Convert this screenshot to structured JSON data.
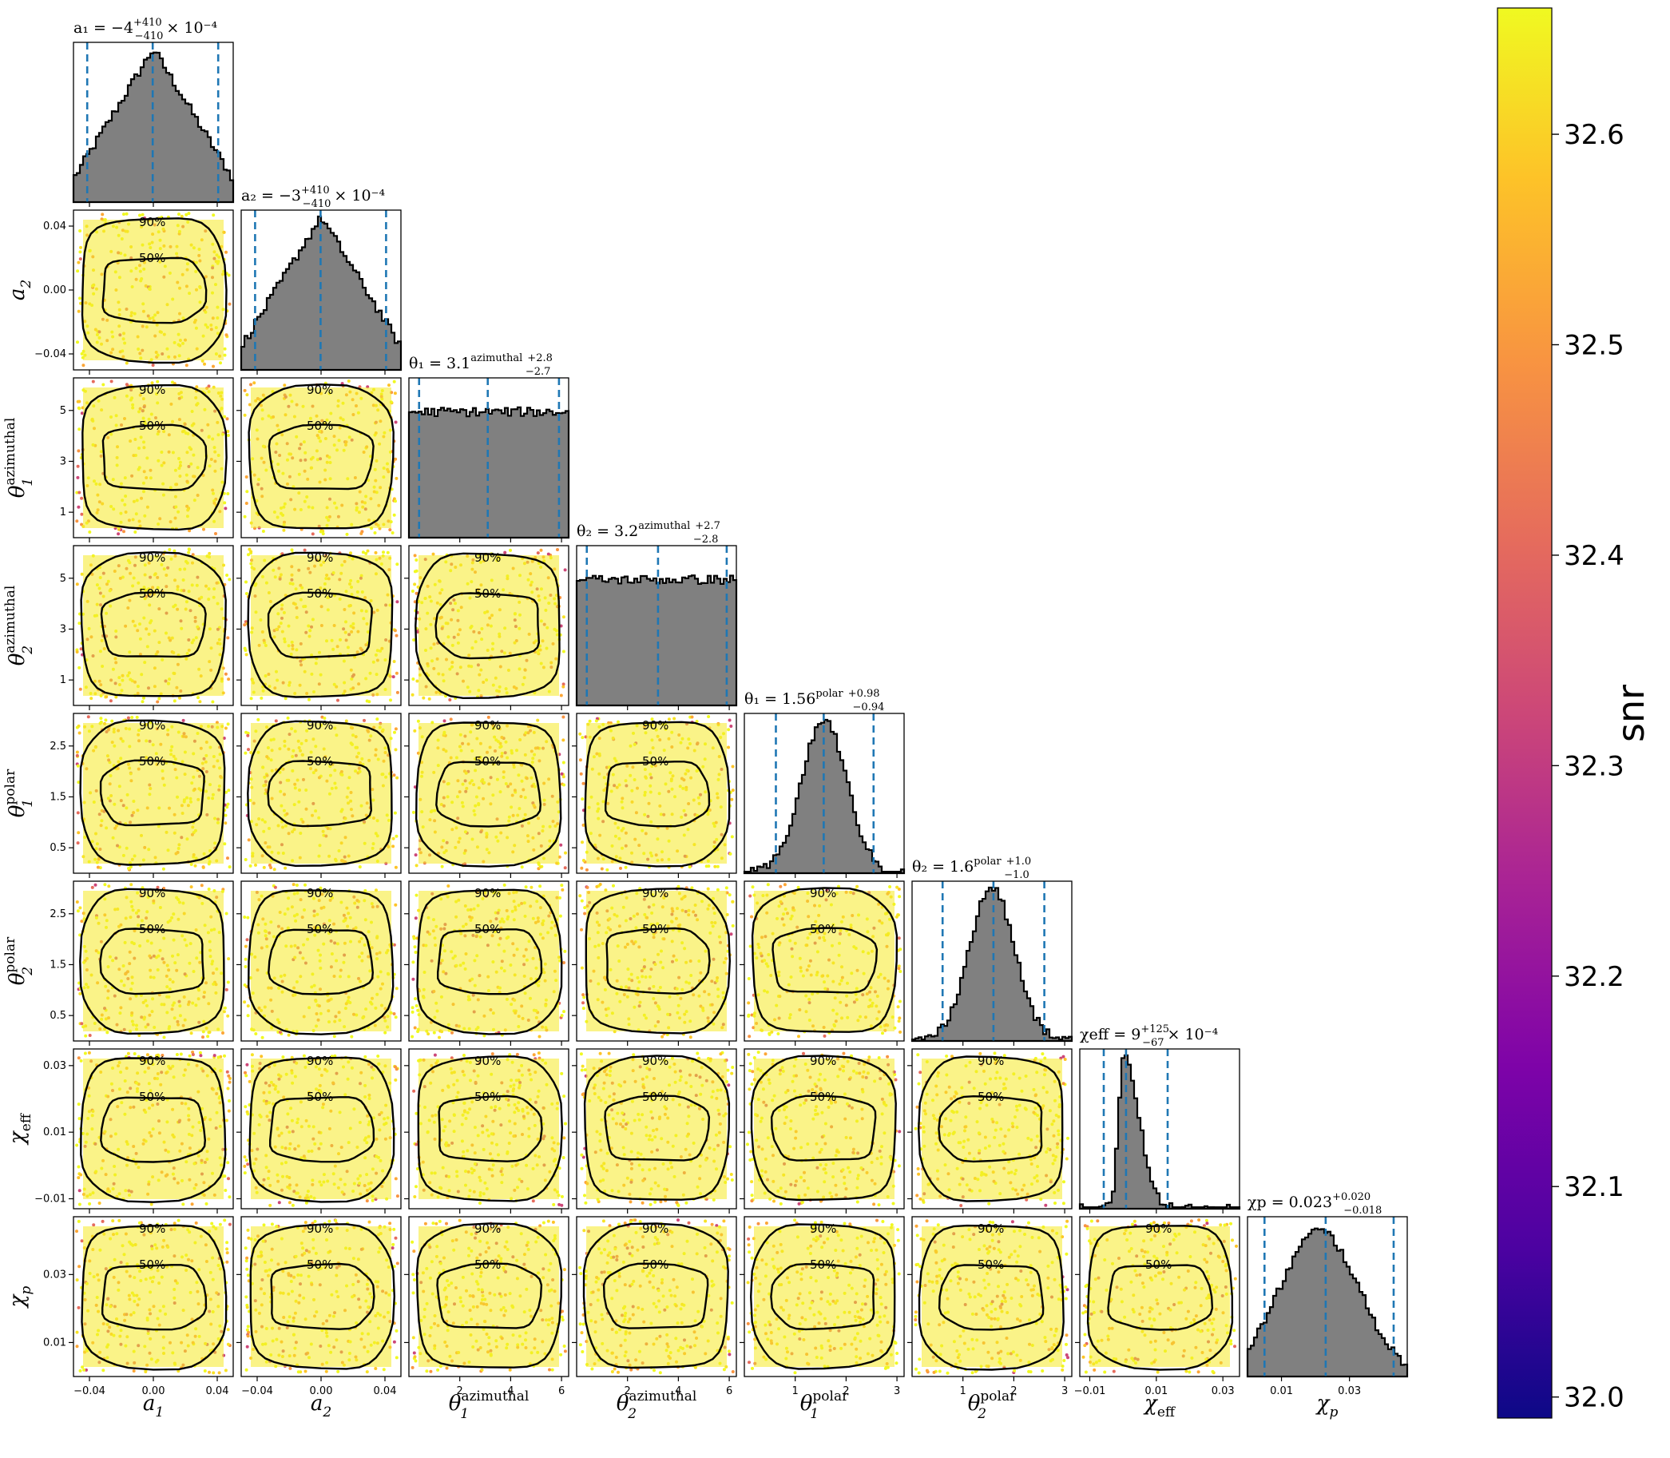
{
  "chart_data": {
    "type": "scatter",
    "subtype": "corner-plot",
    "colormap": "plasma",
    "colorbar": {
      "label": "snr",
      "range": [
        31.99,
        32.66
      ],
      "ticks": [
        "32.0",
        "32.1",
        "32.2",
        "32.3",
        "32.4",
        "32.5",
        "32.6"
      ],
      "tick_values": [
        32.0,
        32.1,
        32.2,
        32.3,
        32.4,
        32.5,
        32.6
      ]
    },
    "parameters": [
      {
        "key": "a1",
        "label_base": "a",
        "label_sub": "1",
        "label_sup": "",
        "range": [
          -0.05,
          0.05
        ],
        "ticks": [
          -0.04,
          0.0,
          0.04
        ],
        "tick_labels": [
          "−0.04",
          "0.00",
          "0.04"
        ],
        "title_main": "a₁ = −4",
        "title_sup": "+410",
        "title_sub": "−410",
        "title_suffix": "× 10⁻⁴",
        "median": -0.0004,
        "lower": -0.0414,
        "upper": 0.0406,
        "hist_shape": "triangle"
      },
      {
        "key": "a2",
        "label_base": "a",
        "label_sub": "2",
        "label_sup": "",
        "range": [
          -0.05,
          0.05
        ],
        "ticks": [
          -0.04,
          0.0,
          0.04
        ],
        "tick_labels": [
          "−0.04",
          "0.00",
          "0.04"
        ],
        "title_main": "a₂ = −3",
        "title_sup": "+410",
        "title_sub": "−410",
        "title_suffix": "× 10⁻⁴",
        "median": -0.0003,
        "lower": -0.0413,
        "upper": 0.0407,
        "hist_shape": "triangle"
      },
      {
        "key": "theta1_az",
        "label_base": "θ",
        "label_sub": "1",
        "label_sup": "azimuthal",
        "range": [
          0,
          6.28
        ],
        "ticks": [
          1,
          3,
          5
        ],
        "tick_labels": [
          "1",
          "3",
          "5"
        ],
        "xticks": [
          2,
          4,
          6
        ],
        "xtick_labels": [
          "2",
          "4",
          "6"
        ],
        "title_main": "θ₁ = 3.1",
        "title_sup": "+2.8",
        "title_sub": "−2.7",
        "title_suffix": "",
        "title_tag": "azimuthal",
        "median": 3.1,
        "lower": 0.4,
        "upper": 5.9,
        "hist_shape": "uniform"
      },
      {
        "key": "theta2_az",
        "label_base": "θ",
        "label_sub": "2",
        "label_sup": "azimuthal",
        "range": [
          0,
          6.28
        ],
        "ticks": [
          1,
          3,
          5
        ],
        "tick_labels": [
          "1",
          "3",
          "5"
        ],
        "xticks": [
          2,
          4,
          6
        ],
        "xtick_labels": [
          "2",
          "4",
          "6"
        ],
        "title_main": "θ₂ = 3.2",
        "title_sup": "+2.7",
        "title_sub": "−2.8",
        "title_suffix": "",
        "title_tag": "azimuthal",
        "median": 3.2,
        "lower": 0.4,
        "upper": 5.9,
        "hist_shape": "uniform"
      },
      {
        "key": "theta1_pol",
        "label_base": "θ",
        "label_sub": "1",
        "label_sup": "polar",
        "range": [
          0,
          3.14
        ],
        "ticks": [
          0.5,
          1.5,
          2.5
        ],
        "tick_labels": [
          "0.5",
          "1.5",
          "2.5"
        ],
        "xticks": [
          1,
          2,
          3
        ],
        "xtick_labels": [
          "1",
          "2",
          "3"
        ],
        "title_main": "θ₁ = 1.56",
        "title_sup": "+0.98",
        "title_sub": "−0.94",
        "title_suffix": "",
        "title_tag": "polar",
        "median": 1.56,
        "lower": 0.62,
        "upper": 2.54,
        "hist_shape": "sine"
      },
      {
        "key": "theta2_pol",
        "label_base": "θ",
        "label_sub": "2",
        "label_sup": "polar",
        "range": [
          0,
          3.14
        ],
        "ticks": [
          0.5,
          1.5,
          2.5
        ],
        "tick_labels": [
          "0.5",
          "1.5",
          "2.5"
        ],
        "xticks": [
          1,
          2,
          3
        ],
        "xtick_labels": [
          "1",
          "2",
          "3"
        ],
        "title_main": "θ₂ = 1.6",
        "title_sup": "+1.0",
        "title_sub": "−1.0",
        "title_suffix": "",
        "title_tag": "polar",
        "median": 1.6,
        "lower": 0.6,
        "upper": 2.6,
        "hist_shape": "sine"
      },
      {
        "key": "chi_eff",
        "label_base": "χ",
        "label_sub": "eff",
        "label_sup": "",
        "range": [
          -0.013,
          0.035
        ],
        "ticks": [
          -0.01,
          0.01,
          0.03
        ],
        "tick_labels": [
          "−0.01",
          "0.01",
          "0.03"
        ],
        "title_main": "χeff = 9",
        "title_sup": "+125",
        "title_sub": "−67",
        "title_suffix": "× 10⁻⁴",
        "median": 0.0009,
        "lower": -0.0058,
        "upper": 0.0134,
        "hist_shape": "skewed"
      },
      {
        "key": "chi_p",
        "label_base": "χ",
        "label_sub": "p",
        "label_sup": "",
        "range": [
          0.0,
          0.047
        ],
        "ticks": [
          0.01,
          0.03
        ],
        "tick_labels": [
          "0.01",
          "0.03"
        ],
        "title_main": "χp = 0.023",
        "title_sup": "+0.020",
        "title_sub": "−0.018",
        "title_suffix": "",
        "median": 0.023,
        "lower": 0.005,
        "upper": 0.043,
        "hist_shape": "broad"
      }
    ],
    "contour_levels": [
      "50%",
      "90%"
    ],
    "quantile_line_color": "#1f77b4",
    "histogram_fill": "#808080"
  }
}
